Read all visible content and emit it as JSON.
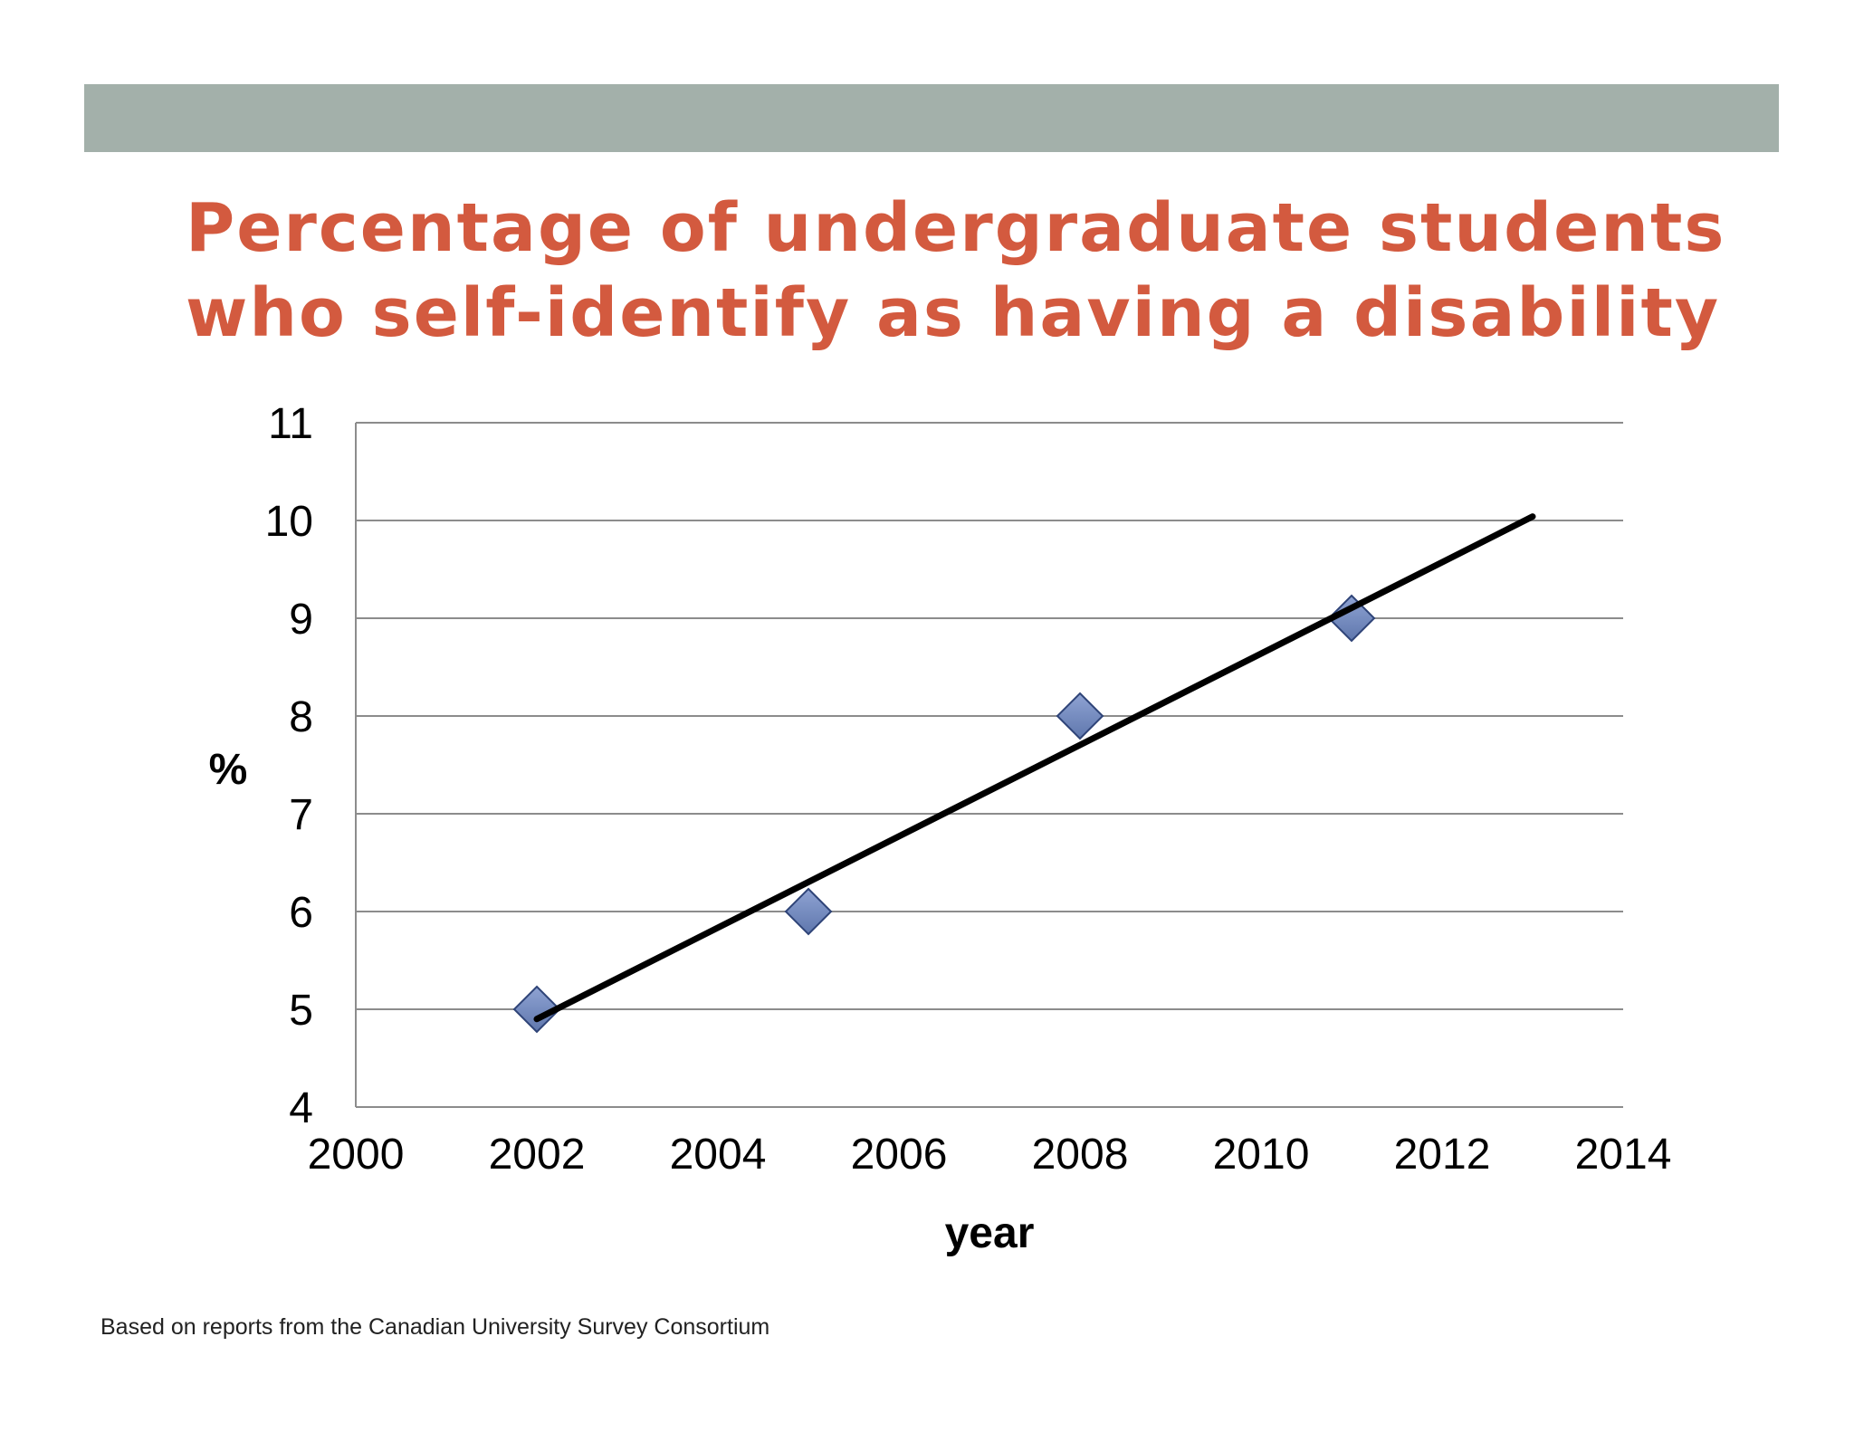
{
  "slide": {
    "title_line1": "Percentage of undergraduate students",
    "title_line2": "who self-identify as having a disability",
    "footnote": "Based on reports from the Canadian University Survey Consortium",
    "colors": {
      "band": "#a3b0aa",
      "title": "#d35a3f",
      "marker_fill": "#5f77ad",
      "marker_stroke": "#2f4478",
      "trendline": "#000000",
      "gridline": "#8c8c8c"
    }
  },
  "chart_data": {
    "type": "scatter",
    "title": "",
    "xlabel": "year",
    "ylabel": "%",
    "xlim": [
      2000,
      2014
    ],
    "ylim": [
      4,
      11
    ],
    "x_ticks": [
      2000,
      2002,
      2004,
      2006,
      2008,
      2010,
      2012,
      2014
    ],
    "y_ticks": [
      4,
      5,
      6,
      7,
      8,
      9,
      10,
      11
    ],
    "grid": "horizontal",
    "legend": "none",
    "series": [
      {
        "marker": "diamond",
        "points": [
          {
            "x": 2002,
            "y": 5
          },
          {
            "x": 2005,
            "y": 6
          },
          {
            "x": 2008,
            "y": 8
          },
          {
            "x": 2011,
            "y": 9
          }
        ]
      }
    ],
    "trendline": {
      "type": "linear",
      "from": {
        "x": 2002,
        "y": 4.9
      },
      "to": {
        "x": 2013,
        "y": 10.04
      }
    }
  }
}
